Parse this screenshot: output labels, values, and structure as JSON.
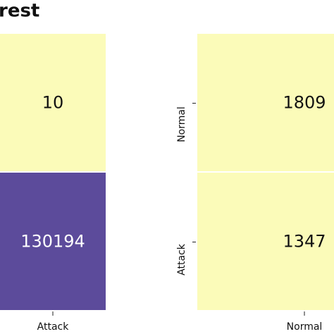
{
  "chart_data": [
    {
      "type": "heatmap",
      "title": "rest",
      "x_categories": [
        "Attack"
      ],
      "y_categories": [
        null,
        null
      ],
      "values": [
        [
          10
        ],
        [
          130194
        ]
      ],
      "colors": [
        [
          "#fbfbb9"
        ],
        [
          "#5c4b9b"
        ]
      ]
    },
    {
      "type": "heatmap",
      "x_categories": [
        "Normal"
      ],
      "y_categories": [
        "Normal",
        "Attack"
      ],
      "values": [
        [
          1809
        ],
        [
          1347
        ]
      ],
      "colors": [
        [
          "#fbfbb9"
        ],
        [
          "#fbfbb9"
        ]
      ]
    }
  ]
}
